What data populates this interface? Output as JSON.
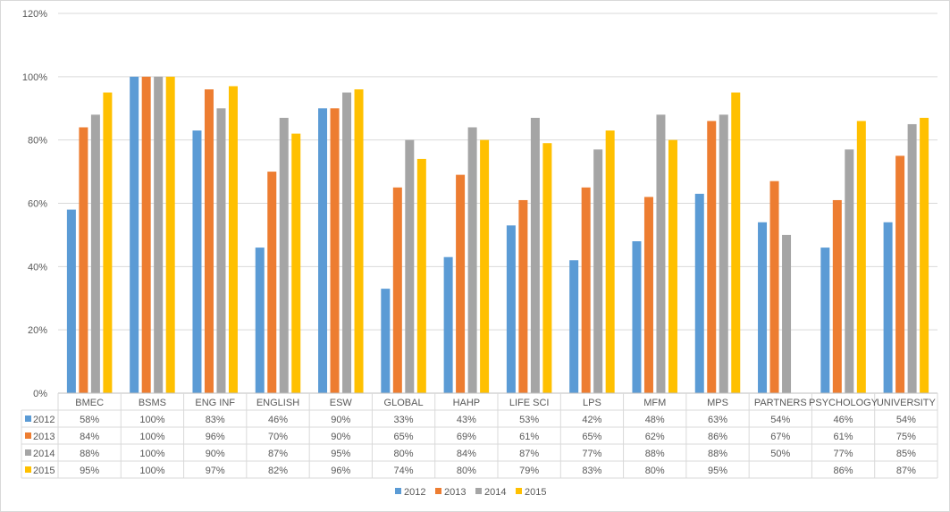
{
  "chart_data": {
    "type": "bar",
    "title": "",
    "xlabel": "",
    "ylabel": "",
    "ylim": [
      0,
      120
    ],
    "yticks": [
      "0%",
      "20%",
      "40%",
      "60%",
      "80%",
      "100%",
      "120%"
    ],
    "grid": true,
    "legend_position": "bottom",
    "categories": [
      "BMEC",
      "BSMS",
      "ENG INF",
      "ENGLISH",
      "ESW",
      "GLOBAL",
      "HAHP",
      "LIFE SCI",
      "LPS",
      "MFM",
      "MPS",
      "PARTNERS",
      "PSYCHOLOGY",
      "UNIVERSITY"
    ],
    "series": [
      {
        "name": "2012",
        "color": "#5b9bd5",
        "values": [
          58,
          100,
          83,
          46,
          90,
          33,
          43,
          53,
          42,
          48,
          63,
          54,
          46,
          54
        ],
        "labels": [
          "58%",
          "100%",
          "83%",
          "46%",
          "90%",
          "33%",
          "43%",
          "53%",
          "42%",
          "48%",
          "63%",
          "54%",
          "46%",
          "54%"
        ]
      },
      {
        "name": "2013",
        "color": "#ed7d31",
        "values": [
          84,
          100,
          96,
          70,
          90,
          65,
          69,
          61,
          65,
          62,
          86,
          67,
          61,
          75
        ],
        "labels": [
          "84%",
          "100%",
          "96%",
          "70%",
          "90%",
          "65%",
          "69%",
          "61%",
          "65%",
          "62%",
          "86%",
          "67%",
          "61%",
          "75%"
        ]
      },
      {
        "name": "2014",
        "color": "#a5a5a5",
        "values": [
          88,
          100,
          90,
          87,
          95,
          80,
          84,
          87,
          77,
          88,
          88,
          50,
          77,
          85
        ],
        "labels": [
          "88%",
          "100%",
          "90%",
          "87%",
          "95%",
          "80%",
          "84%",
          "87%",
          "77%",
          "88%",
          "88%",
          "50%",
          "77%",
          "85%"
        ]
      },
      {
        "name": "2015",
        "color": "#ffc000",
        "values": [
          95,
          100,
          97,
          82,
          96,
          74,
          80,
          79,
          83,
          80,
          95,
          null,
          86,
          87
        ],
        "labels": [
          "95%",
          "100%",
          "97%",
          "82%",
          "96%",
          "74%",
          "80%",
          "79%",
          "83%",
          "80%",
          "95%",
          "",
          "86%",
          "87%"
        ]
      }
    ]
  }
}
